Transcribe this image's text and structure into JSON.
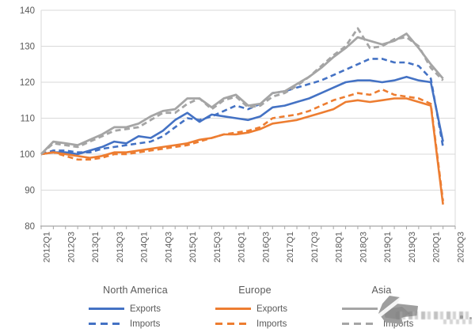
{
  "chart_data": {
    "type": "line",
    "title": "",
    "xlabel": "",
    "ylabel": "",
    "ylim": [
      80,
      140
    ],
    "yticks": [
      80,
      90,
      100,
      110,
      120,
      130,
      140
    ],
    "grid": true,
    "legend_position": "bottom",
    "x_tick_labels": [
      "2012Q1",
      "2012Q3",
      "2013Q1",
      "2013Q3",
      "2014Q1",
      "2014Q3",
      "2015Q1",
      "2015Q3",
      "2016Q1",
      "2016Q3",
      "2017Q1",
      "2017Q3",
      "2018Q1",
      "2018Q3",
      "2019Q1",
      "2019Q3",
      "2020Q1",
      "2020Q3"
    ],
    "x_quarters": [
      "2012Q1",
      "2012Q2",
      "2012Q3",
      "2012Q4",
      "2013Q1",
      "2013Q2",
      "2013Q3",
      "2013Q4",
      "2014Q1",
      "2014Q2",
      "2014Q3",
      "2014Q4",
      "2015Q1",
      "2015Q2",
      "2015Q3",
      "2015Q4",
      "2016Q1",
      "2016Q2",
      "2016Q3",
      "2016Q4",
      "2017Q1",
      "2017Q2",
      "2017Q3",
      "2017Q4",
      "2018Q1",
      "2018Q2",
      "2018Q3",
      "2018Q4",
      "2019Q1",
      "2019Q2",
      "2019Q3",
      "2019Q4",
      "2020Q1",
      "2020Q2"
    ],
    "base_index_note": "2012Q1 = 100",
    "series": [
      {
        "name": "North America Exports",
        "color": "#4472C4",
        "dash": false,
        "values": [
          100,
          100.5,
          100.5,
          100,
          101,
          102,
          103.5,
          103,
          105,
          104.5,
          106.5,
          109.5,
          111.5,
          109,
          111,
          110.5,
          110,
          109.5,
          110.5,
          113,
          113.5,
          114.5,
          115.5,
          117,
          118.5,
          120,
          120.5,
          120.5,
          120,
          120.5,
          121.5,
          120.5,
          120,
          103.5
        ]
      },
      {
        "name": "North America Imports",
        "color": "#4472C4",
        "dash": true,
        "values": [
          100,
          101,
          101,
          100.5,
          100.5,
          101.5,
          102,
          102.5,
          103,
          103.5,
          105,
          107.5,
          110,
          109.5,
          110.5,
          112,
          113.5,
          112.5,
          114,
          117,
          117.5,
          118.5,
          119.5,
          120.5,
          122,
          123.5,
          125,
          126.5,
          126.5,
          125.5,
          125.5,
          124.5,
          121,
          102
        ]
      },
      {
        "name": "Europe Exports",
        "color": "#ED7D31",
        "dash": false,
        "values": [
          100,
          100.5,
          100,
          99.5,
          99,
          99.5,
          100.5,
          100.5,
          101,
          101.5,
          102,
          102.5,
          103,
          104,
          104.5,
          105.5,
          105.5,
          106,
          107,
          108.5,
          109,
          109.5,
          110.5,
          111.5,
          112.5,
          114.5,
          115,
          114.5,
          115,
          115.5,
          115.5,
          114.5,
          113.5,
          86
        ]
      },
      {
        "name": "Europe Imports",
        "color": "#ED7D31",
        "dash": true,
        "values": [
          100,
          100.5,
          99.5,
          98.5,
          98.5,
          99,
          100,
          100,
          100.5,
          101,
          101.5,
          102,
          102.5,
          103.5,
          104.5,
          105.5,
          106,
          106.5,
          107.5,
          110,
          110.5,
          111,
          112,
          113.5,
          115,
          116,
          117,
          116.5,
          118,
          116.5,
          116,
          115.5,
          114,
          87
        ]
      },
      {
        "name": "Asia Exports",
        "color": "#A5A5A5",
        "dash": false,
        "values": [
          100,
          103.5,
          103,
          102.5,
          104,
          105.5,
          107.5,
          107.5,
          108.5,
          110.5,
          112,
          112.5,
          115.5,
          115.5,
          113,
          115.5,
          116.5,
          113.5,
          114,
          117,
          117.5,
          119.5,
          121.5,
          124,
          127,
          129.5,
          132.5,
          131.5,
          130.5,
          131.5,
          133.5,
          129.5,
          125,
          121
        ]
      },
      {
        "name": "Asia Imports",
        "color": "#A5A5A5",
        "dash": true,
        "values": [
          100,
          103,
          102.5,
          102,
          103.5,
          105,
          106.5,
          107,
          107.5,
          109.5,
          111.5,
          111.5,
          114,
          115.5,
          112.5,
          115,
          116,
          113,
          113.5,
          116,
          117,
          119,
          121.5,
          124.5,
          127.5,
          130,
          135,
          129.5,
          130,
          132,
          132.5,
          130,
          124,
          120.5
        ]
      }
    ]
  },
  "legend": {
    "groups": [
      {
        "title": "North America",
        "exports_label": "Exports",
        "imports_label": "Imports",
        "color": "#4472C4"
      },
      {
        "title": "Europe",
        "exports_label": "Exports",
        "imports_label": "Imports",
        "color": "#ED7D31"
      },
      {
        "title": "Asia",
        "exports_label": "Exports",
        "imports_label": "Imports",
        "color": "#A5A5A5"
      }
    ]
  },
  "colors": {
    "north_america": "#4472C4",
    "europe": "#ED7D31",
    "asia": "#A5A5A5",
    "gridline": "#D9D9D9",
    "axis": "#A6A6A6",
    "label_text": "#595959",
    "watermark_gray": "#9E9E9E"
  }
}
